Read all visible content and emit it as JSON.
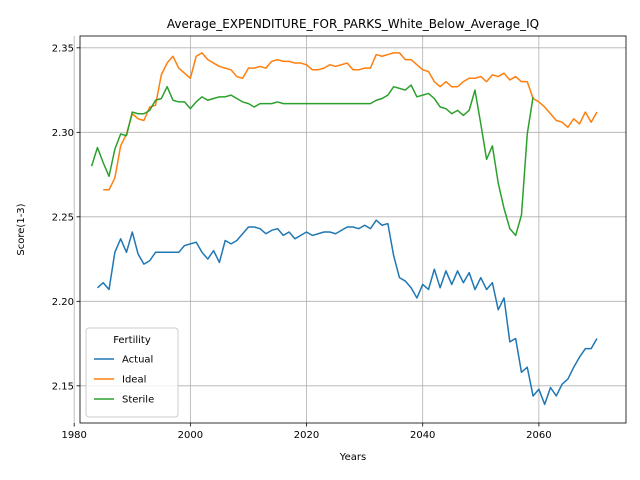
{
  "chart_data": {
    "type": "line",
    "title": "Average_EXPENDITURE_FOR_PARKS_White_Below_Average_IQ",
    "xlabel": "Years",
    "ylabel": "Score(1-3)",
    "xlim": [
      1981,
      2075
    ],
    "ylim": [
      2.128,
      2.357
    ],
    "x_ticks": [
      1980,
      2000,
      2020,
      2040,
      2060
    ],
    "y_ticks": [
      2.15,
      2.2,
      2.25,
      2.3,
      2.35
    ],
    "x_tick_labels": [
      "1980",
      "2000",
      "2020",
      "2040",
      "2060"
    ],
    "y_tick_labels": [
      "2.15",
      "2.20",
      "2.25",
      "2.30",
      "2.35"
    ],
    "grid": true,
    "legend": {
      "title": "Fertility",
      "placement": "lower-left"
    },
    "series": [
      {
        "name": "Actual",
        "color": "#1f77b4",
        "x": [
          1984,
          1985,
          1986,
          1987,
          1988,
          1989,
          1990,
          1991,
          1992,
          1993,
          1994,
          1995,
          1996,
          1997,
          1998,
          1999,
          2000,
          2001,
          2002,
          2003,
          2004,
          2005,
          2006,
          2007,
          2008,
          2009,
          2010,
          2011,
          2012,
          2013,
          2014,
          2015,
          2016,
          2017,
          2018,
          2019,
          2020,
          2021,
          2022,
          2023,
          2024,
          2025,
          2026,
          2027,
          2028,
          2029,
          2030,
          2031,
          2032,
          2033,
          2034,
          2035,
          2036,
          2037,
          2038,
          2039,
          2040,
          2041,
          2042,
          2043,
          2044,
          2045,
          2046,
          2047,
          2048,
          2049,
          2050,
          2051,
          2052,
          2053,
          2054,
          2055,
          2056,
          2057,
          2058,
          2059,
          2060,
          2061,
          2062,
          2063,
          2064,
          2065,
          2066,
          2067,
          2068,
          2069,
          2070
        ],
        "values": [
          2.208,
          2.211,
          2.207,
          2.229,
          2.237,
          2.229,
          2.241,
          2.228,
          2.222,
          2.224,
          2.229,
          2.229,
          2.229,
          2.229,
          2.229,
          2.233,
          2.234,
          2.235,
          2.229,
          2.225,
          2.23,
          2.223,
          2.236,
          2.234,
          2.236,
          2.24,
          2.244,
          2.244,
          2.243,
          2.24,
          2.242,
          2.243,
          2.239,
          2.241,
          2.237,
          2.239,
          2.241,
          2.239,
          2.24,
          2.241,
          2.241,
          2.24,
          2.242,
          2.244,
          2.244,
          2.243,
          2.245,
          2.243,
          2.248,
          2.245,
          2.246,
          2.227,
          2.214,
          2.212,
          2.208,
          2.202,
          2.21,
          2.207,
          2.219,
          2.208,
          2.218,
          2.21,
          2.218,
          2.211,
          2.217,
          2.207,
          2.214,
          2.207,
          2.211,
          2.195,
          2.202,
          2.176,
          2.178,
          2.158,
          2.161,
          2.144,
          2.148,
          2.139,
          2.149,
          2.144,
          2.151,
          2.154,
          2.161,
          2.167,
          2.172,
          2.172,
          2.178
        ]
      },
      {
        "name": "Ideal",
        "color": "#ff7f0e",
        "x": [
          1985,
          1986,
          1987,
          1988,
          1989,
          1990,
          1991,
          1992,
          1993,
          1994,
          1995,
          1996,
          1997,
          1998,
          1999,
          2000,
          2001,
          2002,
          2003,
          2004,
          2005,
          2006,
          2007,
          2008,
          2009,
          2010,
          2011,
          2012,
          2013,
          2014,
          2015,
          2016,
          2017,
          2018,
          2019,
          2020,
          2021,
          2022,
          2023,
          2024,
          2025,
          2026,
          2027,
          2028,
          2029,
          2030,
          2031,
          2032,
          2033,
          2034,
          2035,
          2036,
          2037,
          2038,
          2039,
          2040,
          2041,
          2042,
          2043,
          2044,
          2045,
          2046,
          2047,
          2048,
          2049,
          2050,
          2051,
          2052,
          2053,
          2054,
          2055,
          2056,
          2057,
          2058,
          2059,
          2060,
          2061,
          2062,
          2063,
          2064,
          2065,
          2066,
          2067,
          2068,
          2069,
          2070
        ],
        "values": [
          2.266,
          2.266,
          2.273,
          2.292,
          2.299,
          2.311,
          2.308,
          2.307,
          2.315,
          2.316,
          2.334,
          2.341,
          2.345,
          2.338,
          2.335,
          2.332,
          2.345,
          2.347,
          2.343,
          2.341,
          2.339,
          2.338,
          2.337,
          2.333,
          2.332,
          2.338,
          2.338,
          2.339,
          2.338,
          2.342,
          2.343,
          2.342,
          2.342,
          2.341,
          2.341,
          2.34,
          2.337,
          2.337,
          2.338,
          2.34,
          2.339,
          2.34,
          2.341,
          2.337,
          2.337,
          2.338,
          2.338,
          2.346,
          2.345,
          2.346,
          2.347,
          2.347,
          2.343,
          2.343,
          2.34,
          2.337,
          2.336,
          2.33,
          2.327,
          2.33,
          2.327,
          2.327,
          2.33,
          2.332,
          2.332,
          2.333,
          2.33,
          2.334,
          2.333,
          2.335,
          2.331,
          2.333,
          2.33,
          2.33,
          2.32,
          2.318,
          2.315,
          2.311,
          2.307,
          2.306,
          2.303,
          2.308,
          2.305,
          2.312,
          2.306,
          2.312
        ]
      },
      {
        "name": "Sterile",
        "color": "#2ca02c",
        "x": [
          1983,
          1984,
          1985,
          1986,
          1987,
          1988,
          1989,
          1990,
          1991,
          1992,
          1993,
          1994,
          1995,
          1996,
          1997,
          1998,
          1999,
          2000,
          2001,
          2002,
          2003,
          2004,
          2005,
          2006,
          2007,
          2008,
          2009,
          2010,
          2011,
          2012,
          2013,
          2014,
          2015,
          2016,
          2017,
          2018,
          2019,
          2020,
          2021,
          2022,
          2023,
          2024,
          2025,
          2026,
          2027,
          2028,
          2029,
          2030,
          2031,
          2032,
          2033,
          2034,
          2035,
          2036,
          2037,
          2038,
          2039,
          2040,
          2041,
          2042,
          2043,
          2044,
          2045,
          2046,
          2047,
          2048,
          2049,
          2050,
          2051,
          2052,
          2053,
          2054,
          2055,
          2056,
          2057,
          2058,
          2059
        ],
        "values": [
          2.28,
          2.291,
          2.282,
          2.274,
          2.29,
          2.299,
          2.298,
          2.312,
          2.311,
          2.311,
          2.313,
          2.319,
          2.32,
          2.327,
          2.319,
          2.318,
          2.318,
          2.314,
          2.318,
          2.321,
          2.319,
          2.32,
          2.321,
          2.321,
          2.322,
          2.32,
          2.318,
          2.317,
          2.315,
          2.317,
          2.317,
          2.317,
          2.318,
          2.317,
          2.317,
          2.317,
          2.317,
          2.317,
          2.317,
          2.317,
          2.317,
          2.317,
          2.317,
          2.317,
          2.317,
          2.317,
          2.317,
          2.317,
          2.317,
          2.319,
          2.32,
          2.322,
          2.327,
          2.326,
          2.325,
          2.328,
          2.321,
          2.322,
          2.323,
          2.32,
          2.315,
          2.314,
          2.311,
          2.313,
          2.31,
          2.313,
          2.325,
          2.305,
          2.284,
          2.292,
          2.27,
          2.255,
          2.243,
          2.239,
          2.251,
          2.299,
          2.321
        ]
      }
    ]
  }
}
